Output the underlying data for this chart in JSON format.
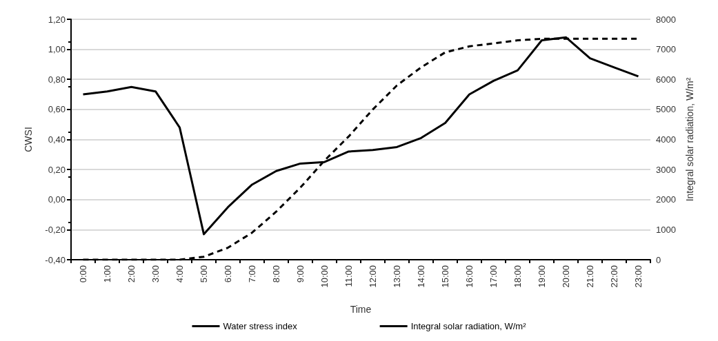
{
  "chart_data": {
    "type": "line",
    "xlabel": "Time",
    "ylabel": "CWSI",
    "y2label": "Integral solar radiation, W/m²",
    "categories": [
      "0:00",
      "1:00",
      "2:00",
      "3:00",
      "4:00",
      "5:00",
      "6:00",
      "7:00",
      "8:00",
      "9:00",
      "10:00",
      "11:00",
      "12:00",
      "13:00",
      "14:00",
      "15:00",
      "16:00",
      "17:00",
      "18:00",
      "19:00",
      "20:00",
      "21:00",
      "22:00",
      "23:00"
    ],
    "series": [
      {
        "name": "Water stress index",
        "color": "#000000",
        "line_style": "solid",
        "values": [
          0.7,
          0.72,
          0.75,
          0.72,
          0.48,
          -0.23,
          -0.05,
          0.1,
          0.19,
          0.24,
          0.25,
          0.32,
          0.33,
          0.35,
          0.41,
          0.51,
          0.7,
          0.79,
          0.86,
          1.06,
          1.08,
          0.94,
          0.88,
          0.82
        ]
      },
      {
        "name": "Integral solar radiation, W/m²",
        "color": "#000000",
        "line_style": "dashed",
        "axis": "y2",
        "values": [
          0,
          0,
          0,
          0,
          0,
          100,
          400,
          900,
          1600,
          2400,
          3300,
          4100,
          5000,
          5800,
          6400,
          6900,
          7100,
          7200,
          7300,
          7350,
          7350,
          7350,
          7350,
          7350
        ]
      }
    ],
    "ylim": [
      -0.4,
      1.2
    ],
    "yticks": [
      {
        "value": -0.4,
        "label": "-0,40"
      },
      {
        "value": -0.2,
        "label": "-0,20"
      },
      {
        "value": 0,
        "label": "0,00"
      },
      {
        "value": 0.2,
        "label": "0,20"
      },
      {
        "value": 0.4,
        "label": "0,40"
      },
      {
        "value": 0.6,
        "label": "0,60"
      },
      {
        "value": 0.8,
        "label": "0,80"
      },
      {
        "value": 1.0,
        "label": "1,00"
      },
      {
        "value": 1.2,
        "label": "1,20"
      }
    ],
    "y2lim": [
      0,
      8000
    ],
    "y2ticks": [
      0,
      1000,
      2000,
      3000,
      4000,
      5000,
      6000,
      7000,
      8000
    ],
    "grid": "y",
    "legend": "bottom",
    "marker": "none"
  }
}
